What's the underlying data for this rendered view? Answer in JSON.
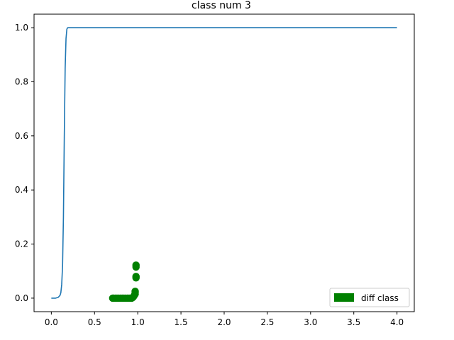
{
  "chart_data": {
    "type": "line",
    "title": "class num 3",
    "xlabel": "",
    "ylabel": "",
    "xlim": [
      -0.2,
      4.2
    ],
    "ylim": [
      -0.05,
      1.05
    ],
    "x_ticks": [
      0.0,
      0.5,
      1.0,
      1.5,
      2.0,
      2.5,
      3.0,
      3.5,
      4.0
    ],
    "x_tick_labels": [
      "0.0",
      "0.5",
      "1.0",
      "1.5",
      "2.0",
      "2.5",
      "3.0",
      "3.5",
      "4.0"
    ],
    "y_ticks": [
      0.0,
      0.2,
      0.4,
      0.6,
      0.8,
      1.0
    ],
    "y_tick_labels": [
      "0.0",
      "0.2",
      "0.4",
      "0.6",
      "0.8",
      "1.0"
    ],
    "grid": false,
    "legend_position": "lower-right",
    "series": [
      {
        "type": "line",
        "color": "#1f77b4",
        "x": [
          0.0,
          0.05,
          0.08,
          0.1,
          0.11,
          0.12,
          0.13,
          0.14,
          0.15,
          0.16,
          0.17,
          0.18,
          0.19,
          0.2,
          0.25,
          4.0
        ],
        "y": [
          0.0,
          0.0,
          0.003,
          0.01,
          0.02,
          0.05,
          0.12,
          0.3,
          0.6,
          0.85,
          0.96,
          0.995,
          1.0,
          1.0,
          1.0,
          1.0
        ]
      },
      {
        "type": "scatter",
        "name": "diff class",
        "color": "#008000",
        "x": [
          0.71,
          0.72,
          0.74,
          0.76,
          0.78,
          0.8,
          0.82,
          0.84,
          0.86,
          0.88,
          0.9,
          0.92,
          0.93,
          0.94,
          0.95,
          0.96,
          0.97,
          0.97,
          0.97,
          0.98,
          0.98,
          0.98,
          0.98
        ],
        "y": [
          0.0,
          0.0,
          0.0,
          0.0,
          0.0,
          0.0,
          0.0,
          0.0,
          0.0,
          0.0,
          0.0,
          0.0,
          0.0,
          0.002,
          0.005,
          0.01,
          0.015,
          0.02,
          0.025,
          0.075,
          0.08,
          0.115,
          0.122
        ]
      }
    ]
  }
}
